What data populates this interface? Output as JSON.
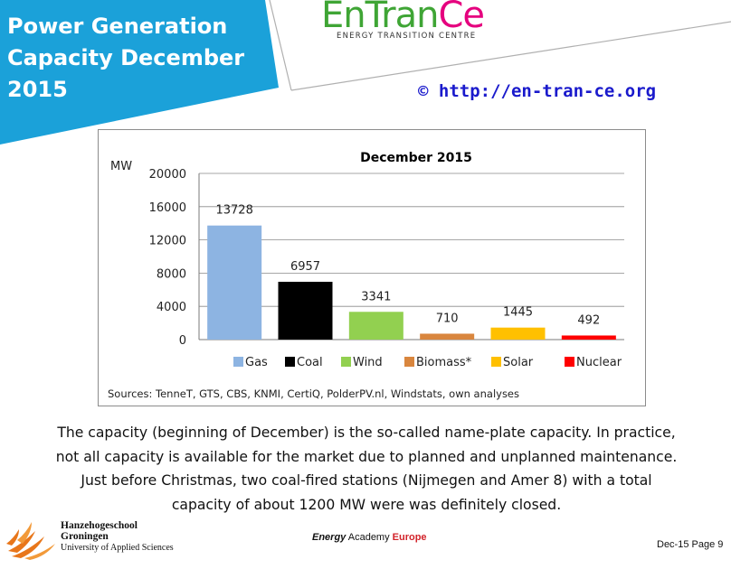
{
  "header": {
    "title": "Power  Generation\nCapacity December\n2015",
    "url": "© http://en-tran-ce.org",
    "logo": {
      "part1": "EnTran",
      "part2": "Ce",
      "tagline": "ENERGY TRANSITION CENTRE"
    },
    "banner_color": "#1ba1d9"
  },
  "chart_data": {
    "type": "bar",
    "title": "December 2015",
    "ylabel": "MW",
    "xlabel": "",
    "ylim": [
      0,
      20000
    ],
    "yticks": [
      0,
      4000,
      8000,
      12000,
      16000,
      20000
    ],
    "grid": true,
    "legend_position": "bottom",
    "categories": [
      "Gas",
      "Coal",
      "Wind",
      "Biomass*",
      "Solar",
      "Nuclear"
    ],
    "values": [
      13728,
      6957,
      3341,
      710,
      1445,
      492
    ],
    "colors": [
      "#8db4e2",
      "#000000",
      "#92d050",
      "#d9863e",
      "#ffc000",
      "#ff0000"
    ],
    "source": "Sources: TenneT, GTS, CBS, KNMI, CertiQ, PolderPV.nl, Windstats, own analyses"
  },
  "body": {
    "paragraph": "The capacity (beginning of December) is the so-called name-plate capacity. In practice, not all capacity is available for the market due to planned and unplanned maintenance. Just before Christmas, two coal-fired stations (Nijmegen and Amer 8) with a total capacity of about 1200 MW were was definitely closed."
  },
  "footer": {
    "school_line1": "Hanzehogeschool",
    "school_line2": "Groningen",
    "school_line3": "University of Applied Sciences",
    "academy_part1": "Energy",
    "academy_part2": " Academy ",
    "academy_part3": "Europe",
    "page_info": "Dec-15  Page 9"
  }
}
